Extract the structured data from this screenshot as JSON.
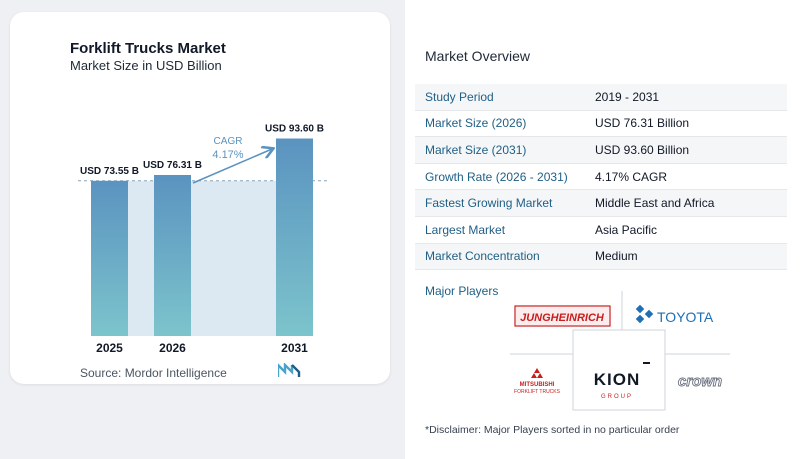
{
  "chart_title": "Forklift Trucks Market",
  "chart_subtitle": "Market Size in USD Billion",
  "source": "Source:  Mordor Intelligence",
  "chart_data": {
    "type": "bar",
    "title": "Forklift Trucks Market",
    "subtitle": "Market Size in USD Billion",
    "categories": [
      "2025",
      "2026",
      "2031"
    ],
    "values": [
      73.55,
      76.31,
      93.6
    ],
    "value_labels": [
      "USD 73.55 B",
      "USD 76.31 B",
      "USD 93.60 B"
    ],
    "cagr_label": "CAGR",
    "cagr_value": "4.17%",
    "xlabel": "",
    "ylabel": "",
    "grid": false
  },
  "overview": {
    "title": "Market Overview",
    "rows": [
      {
        "label": "Study Period",
        "value": "2019 - 2031"
      },
      {
        "label": "Market Size (2026)",
        "value": "USD 76.31 Billion"
      },
      {
        "label": "Market Size (2031)",
        "value": "USD 93.60 Billion"
      },
      {
        "label": "Growth Rate (2026 - 2031)",
        "value": "4.17% CAGR"
      },
      {
        "label": "Fastest Growing Market",
        "value": "Middle East and Africa"
      },
      {
        "label": "Largest Market",
        "value": "Asia Pacific"
      },
      {
        "label": "Market Concentration",
        "value": "Medium"
      }
    ]
  },
  "players": {
    "title": "Major Players",
    "logos": [
      "JUNGHEINRICH",
      "TOYOTA",
      "MITSUBISHI",
      "FORKLIFT TRUCKS",
      "KION",
      "GROUP",
      "crown"
    ]
  },
  "disclaimer": "*Disclaimer: Major Players sorted in no particular order",
  "colors": {
    "bar_top": "#5b93c0",
    "bar_bottom": "#7cc4cc",
    "highlight_band": "#dde9f2",
    "arrow": "#5b93c0",
    "label_blue": "#1f5f86"
  }
}
